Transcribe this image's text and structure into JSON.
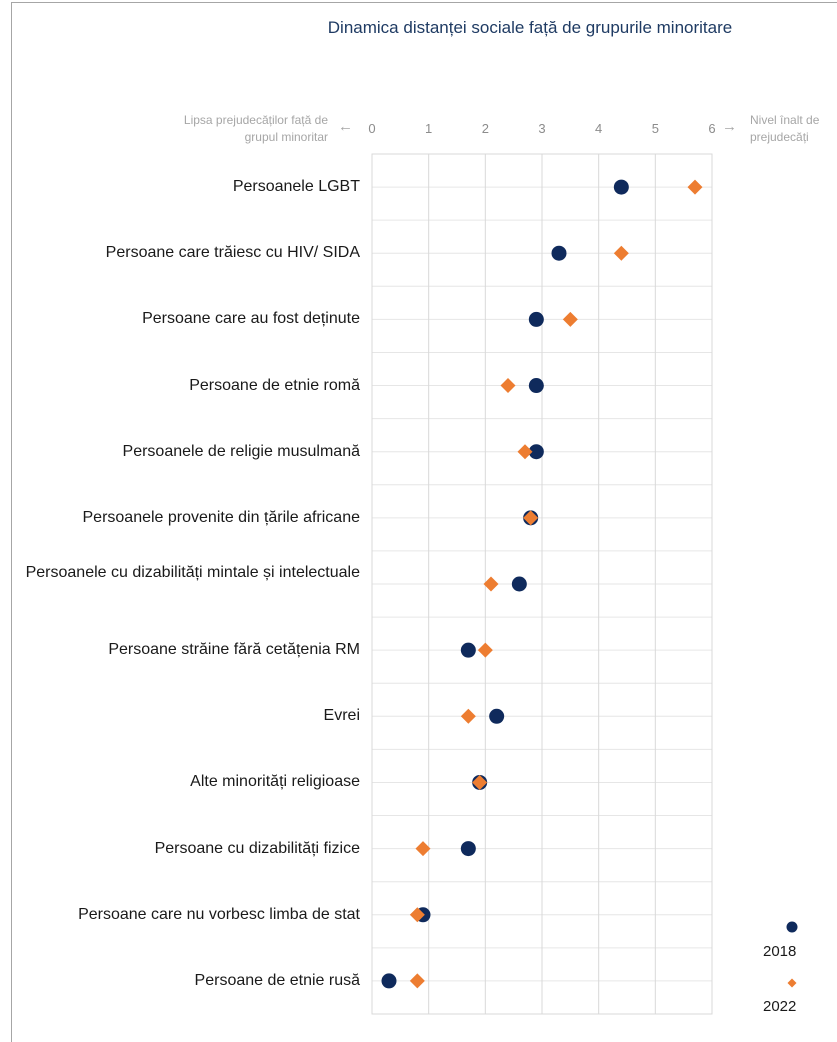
{
  "chart_data": {
    "type": "scatter",
    "title": "Dinamica distanței sociale față de grupurile minoritare",
    "x_axis": {
      "ticks": [
        0,
        1,
        2,
        3,
        4,
        5,
        6
      ],
      "xlim": [
        0,
        6
      ],
      "left_note": "Lipsa prejudecăților față de grupul minoritar",
      "right_note": "Nivel înalt de prejudecăți"
    },
    "grid": true,
    "legend_position": "bottom-right",
    "categories": [
      "Persoanele LGBT",
      "Persoane care trăiesc cu HIV/ SIDA",
      "Persoane care au fost deținute",
      "Persoane de etnie romă",
      "Persoanele de religie musulmană",
      "Persoanele provenite din țările africane",
      "Persoanele cu dizabilități mintale și intelectuale",
      "Persoane străine fără cetățenia RM",
      "Evrei",
      "Alte minorități religioase",
      "Persoane cu dizabilități fizice",
      "Persoane care nu vorbesc limba de stat",
      "Persoane de etnie rusă"
    ],
    "series": [
      {
        "name": "2018",
        "color": "#0f2a5c",
        "marker": "circle",
        "values": [
          4.4,
          3.3,
          2.9,
          2.9,
          2.9,
          2.8,
          2.6,
          1.7,
          2.2,
          1.9,
          1.7,
          0.9,
          0.3
        ]
      },
      {
        "name": "2022",
        "color": "#ed7d31",
        "marker": "diamond",
        "values": [
          5.7,
          4.4,
          3.5,
          2.4,
          2.7,
          2.8,
          2.1,
          2.0,
          1.7,
          1.9,
          0.9,
          0.8,
          0.8
        ]
      }
    ]
  }
}
